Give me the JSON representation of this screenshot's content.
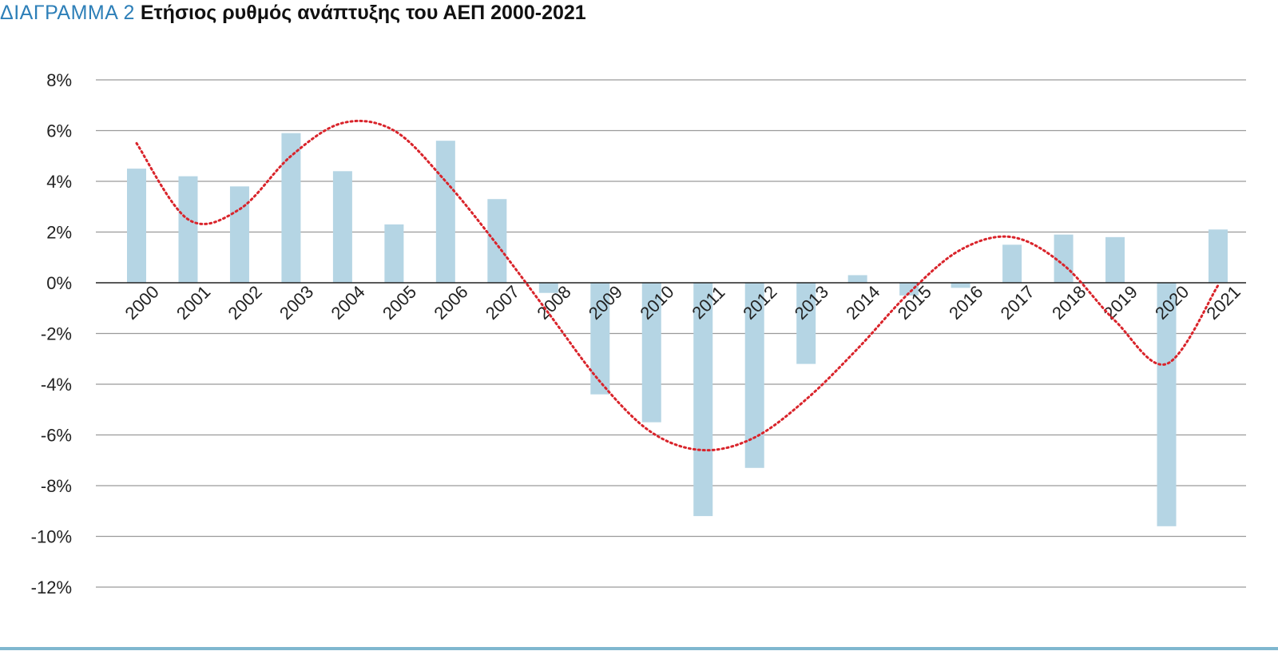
{
  "title": {
    "label": "ΔΙΑΓΡΑΜΜΑ 2",
    "text": "Ετήσιος ρυθμός ανάπτυξης του ΑΕΠ 2000-2021"
  },
  "colors": {
    "bar": "#b5d5e4",
    "trend": "#d9242b",
    "grid": "#9a9a9a",
    "zero_line": "#222222",
    "label_accent": "#2d7fb8",
    "bottom_rule": "#7fb7cf"
  },
  "chart_data": {
    "type": "bar",
    "title": "Ετήσιος ρυθμός ανάπτυξης του ΑΕΠ 2000-2021",
    "categories": [
      "2000",
      "2001",
      "2002",
      "2003",
      "2004",
      "2005",
      "2006",
      "2007",
      "2008",
      "2009",
      "2010",
      "2011",
      "2012",
      "2013",
      "2014",
      "2015",
      "2016",
      "2017",
      "2018",
      "2019",
      "2020",
      "2021"
    ],
    "series": [
      {
        "values": [
          4.5,
          4.2,
          3.8,
          5.9,
          4.4,
          2.3,
          5.6,
          3.3,
          -0.4,
          -4.4,
          -5.5,
          -9.2,
          -7.3,
          -3.2,
          0.3,
          -0.5,
          -0.2,
          1.5,
          1.9,
          1.8,
          -9.6,
          2.1
        ]
      }
    ],
    "trendline": {
      "type": "polynomial",
      "style": "dotted",
      "values": [
        5.5,
        2.5,
        2.9,
        5.0,
        6.3,
        6.0,
        4.0,
        1.5,
        -1.2,
        -3.9,
        -5.9,
        -6.6,
        -6.1,
        -4.6,
        -2.6,
        -0.4,
        1.3,
        1.8,
        0.7,
        -1.5,
        -3.2,
        -0.1
      ]
    },
    "yticks": [
      "8%",
      "6%",
      "4%",
      "2%",
      "0%",
      "-2%",
      "-4%",
      "-6%",
      "-8%",
      "-10%",
      "-12%"
    ],
    "ylim": [
      -12,
      8
    ],
    "ystep": 2,
    "grid": true,
    "legend": "none"
  }
}
